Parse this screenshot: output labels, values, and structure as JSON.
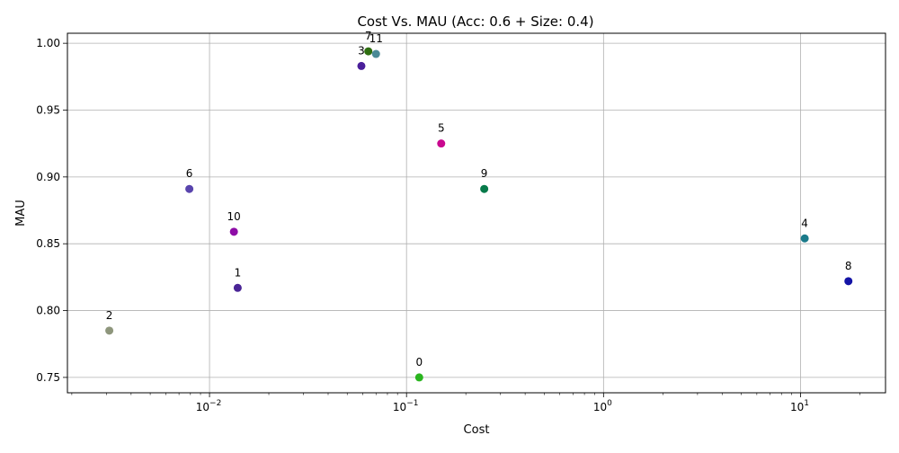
{
  "chart_data": {
    "type": "scatter",
    "title": "Cost Vs. MAU (Acc: 0.6 + Size: 0.4)",
    "xlabel": "Cost",
    "ylabel": "MAU",
    "x_scale": "log",
    "xlim": [
      0.0019,
      27
    ],
    "ylim": [
      0.7385,
      1.0075
    ],
    "grid": true,
    "x_ticks": [
      {
        "value": 0.01,
        "base": "10",
        "exp": "−2"
      },
      {
        "value": 0.1,
        "base": "10",
        "exp": "−1"
      },
      {
        "value": 1,
        "base": "10",
        "exp": "0"
      },
      {
        "value": 10,
        "base": "10",
        "exp": "1"
      }
    ],
    "y_ticks": [
      {
        "value": 0.75,
        "label": "0.75"
      },
      {
        "value": 0.8,
        "label": "0.80"
      },
      {
        "value": 0.85,
        "label": "0.85"
      },
      {
        "value": 0.9,
        "label": "0.90"
      },
      {
        "value": 0.95,
        "label": "0.95"
      },
      {
        "value": 1.0,
        "label": "1.00"
      }
    ],
    "points": [
      {
        "label": "0",
        "x": 0.116,
        "y": 0.75,
        "color": "#2ab51f"
      },
      {
        "label": "1",
        "x": 0.0139,
        "y": 0.817,
        "color": "#4a2596"
      },
      {
        "label": "2",
        "x": 0.0031,
        "y": 0.785,
        "color": "#8e967c"
      },
      {
        "label": "3",
        "x": 0.059,
        "y": 0.983,
        "color": "#4a1f9a"
      },
      {
        "label": "4",
        "x": 10.5,
        "y": 0.854,
        "color": "#1a7a8a"
      },
      {
        "label": "5",
        "x": 0.15,
        "y": 0.925,
        "color": "#c9088f"
      },
      {
        "label": "6",
        "x": 0.0079,
        "y": 0.891,
        "color": "#5944ad"
      },
      {
        "label": "7",
        "x": 0.064,
        "y": 0.994,
        "color": "#2e6e10"
      },
      {
        "label": "8",
        "x": 17.5,
        "y": 0.822,
        "color": "#1414a6"
      },
      {
        "label": "9",
        "x": 0.248,
        "y": 0.891,
        "color": "#077a4a"
      },
      {
        "label": "10",
        "x": 0.0133,
        "y": 0.859,
        "color": "#8d0ca6"
      },
      {
        "label": "11",
        "x": 0.07,
        "y": 0.992,
        "color": "#4a8a96"
      }
    ]
  }
}
